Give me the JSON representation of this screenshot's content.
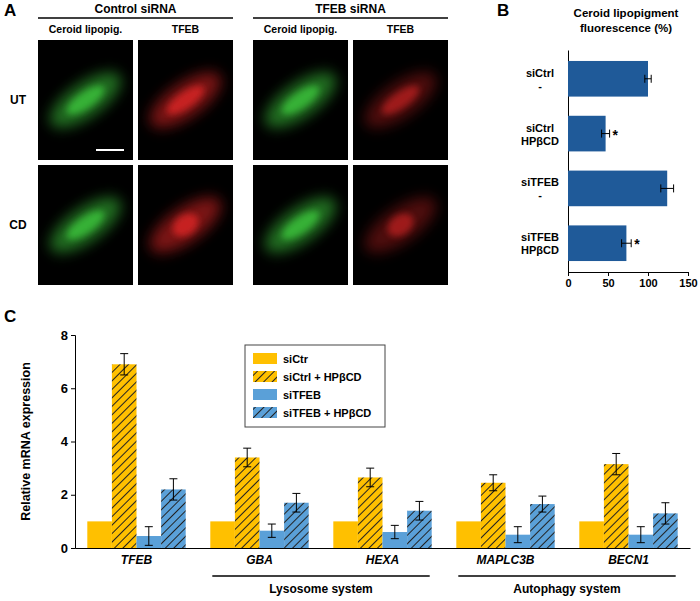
{
  "panel_a": {
    "label": "A",
    "groups": [
      {
        "title": "Control siRNA",
        "channels": [
          "Ceroid lipopig.",
          "TFEB"
        ]
      },
      {
        "title": "TFEB siRNA",
        "channels": [
          "Ceroid lipopig.",
          "TFEB"
        ]
      }
    ],
    "rows": [
      "UT",
      "CD"
    ]
  },
  "chart_data": [
    {
      "type": "bar",
      "panel_label": "B",
      "title": "Ceroid lipopigment fluorescence (%)",
      "orientation": "horizontal",
      "categories": [
        "siCtrl\n-",
        "siCtrl\nHPβCD",
        "siTFEB\n-",
        "siTFEB\nHPβCD"
      ],
      "values": [
        100,
        47,
        124,
        73
      ],
      "errors": [
        4,
        5,
        8,
        6
      ],
      "annotations": [
        null,
        "*",
        null,
        "*"
      ],
      "color": "#1f5a99",
      "xlim": [
        0,
        150
      ],
      "xticks": [
        0,
        50,
        100,
        150
      ],
      "grid": false
    },
    {
      "type": "bar",
      "panel_label": "C",
      "y_label": "Relative mRNA expression",
      "categories": [
        "TFEB",
        "GBA",
        "HEXA",
        "MAPLC3B",
        "BECN1"
      ],
      "groups": [
        {
          "label": "Lysosome system",
          "categories": [
            "GBA",
            "HEXA"
          ]
        },
        {
          "label": "Autophagy system",
          "categories": [
            "MAPLC3B",
            "BECN1"
          ]
        }
      ],
      "series": [
        {
          "name": "siCtr",
          "color": "#ffc000",
          "line_style": "solid",
          "values": [
            1,
            1,
            1,
            1,
            1
          ]
        },
        {
          "name": "siCtrl + HPβCD",
          "color": "#ffc000",
          "line_style": "hatched",
          "values": [
            6.9,
            3.4,
            2.65,
            2.45,
            3.15
          ],
          "errors": [
            0.4,
            0.35,
            0.35,
            0.3,
            0.4
          ]
        },
        {
          "name": "siTFEB",
          "color": "#5aa0d8",
          "line_style": "solid",
          "values": [
            0.45,
            0.65,
            0.6,
            0.5,
            0.5
          ],
          "errors": [
            0.35,
            0.25,
            0.25,
            0.3,
            0.3
          ]
        },
        {
          "name": "siTFEB + HPβCD",
          "color": "#5aa0d8",
          "line_style": "hatched",
          "values": [
            2.2,
            1.7,
            1.4,
            1.65,
            1.3
          ],
          "errors": [
            0.4,
            0.35,
            0.35,
            0.3,
            0.4
          ]
        }
      ],
      "ylim": [
        0,
        8
      ],
      "yticks": [
        0,
        2,
        4,
        6,
        8
      ],
      "legend": "top",
      "grid": false
    }
  ]
}
